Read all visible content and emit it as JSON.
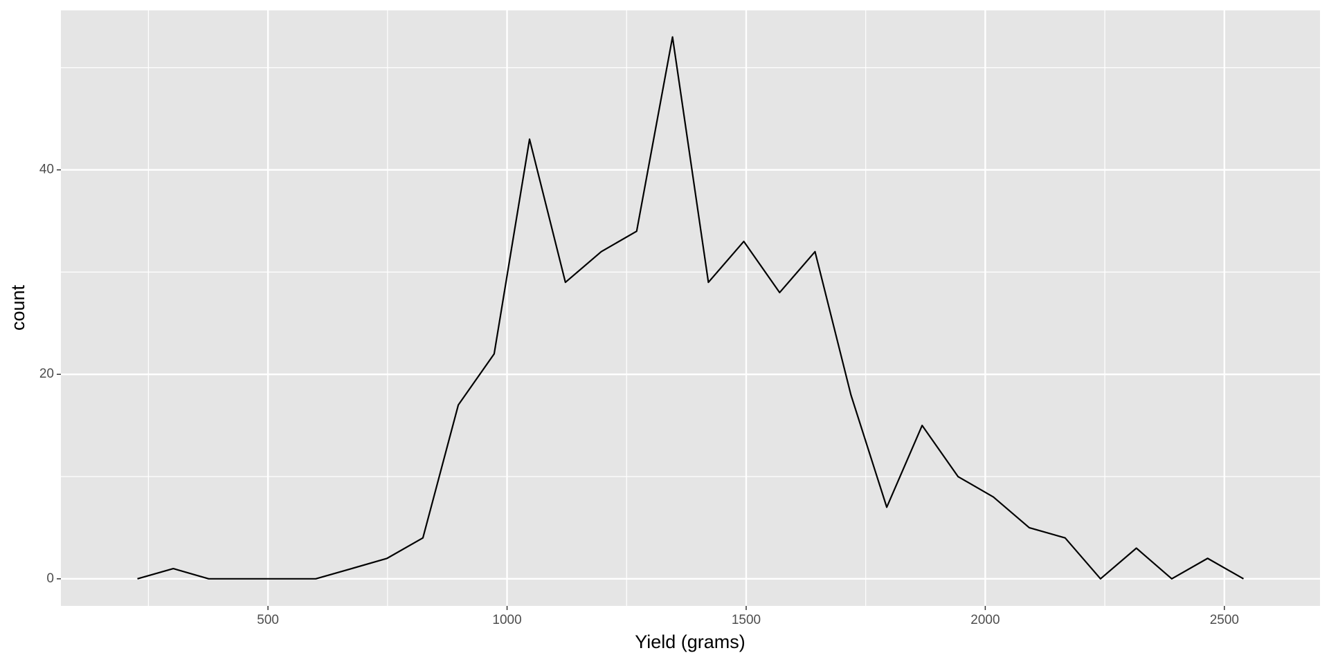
{
  "chart_data": {
    "type": "line",
    "x_label": "Yield (grams)",
    "y_label": "count",
    "x": [
      227,
      302,
      376,
      451,
      525,
      600,
      675,
      749,
      824,
      898,
      973,
      1047,
      1122,
      1197,
      1271,
      1346,
      1421,
      1495,
      1570,
      1644,
      1719,
      1794,
      1868,
      1943,
      2017,
      2092,
      2167,
      2241,
      2316,
      2390,
      2465,
      2540
    ],
    "series": [
      {
        "color": "#000000",
        "values": [
          0,
          1,
          0,
          0,
          0,
          0,
          1,
          2,
          4,
          17,
          22,
          43,
          29,
          32,
          34,
          53,
          29,
          33,
          28,
          32,
          18,
          7,
          15,
          10,
          8,
          5,
          4,
          0,
          3,
          0,
          2,
          0
        ]
      }
    ],
    "xlim": [
      67,
      2700
    ],
    "ylim": [
      -2.65,
      55.6
    ],
    "xticks": [
      500,
      1000,
      1500,
      2000,
      2500
    ],
    "yticks": [
      0,
      20,
      40
    ],
    "x_minor_ticks": [
      250,
      750,
      1250,
      1750,
      2250
    ],
    "y_minor_ticks": [
      10,
      30,
      50
    ],
    "grid": true
  }
}
